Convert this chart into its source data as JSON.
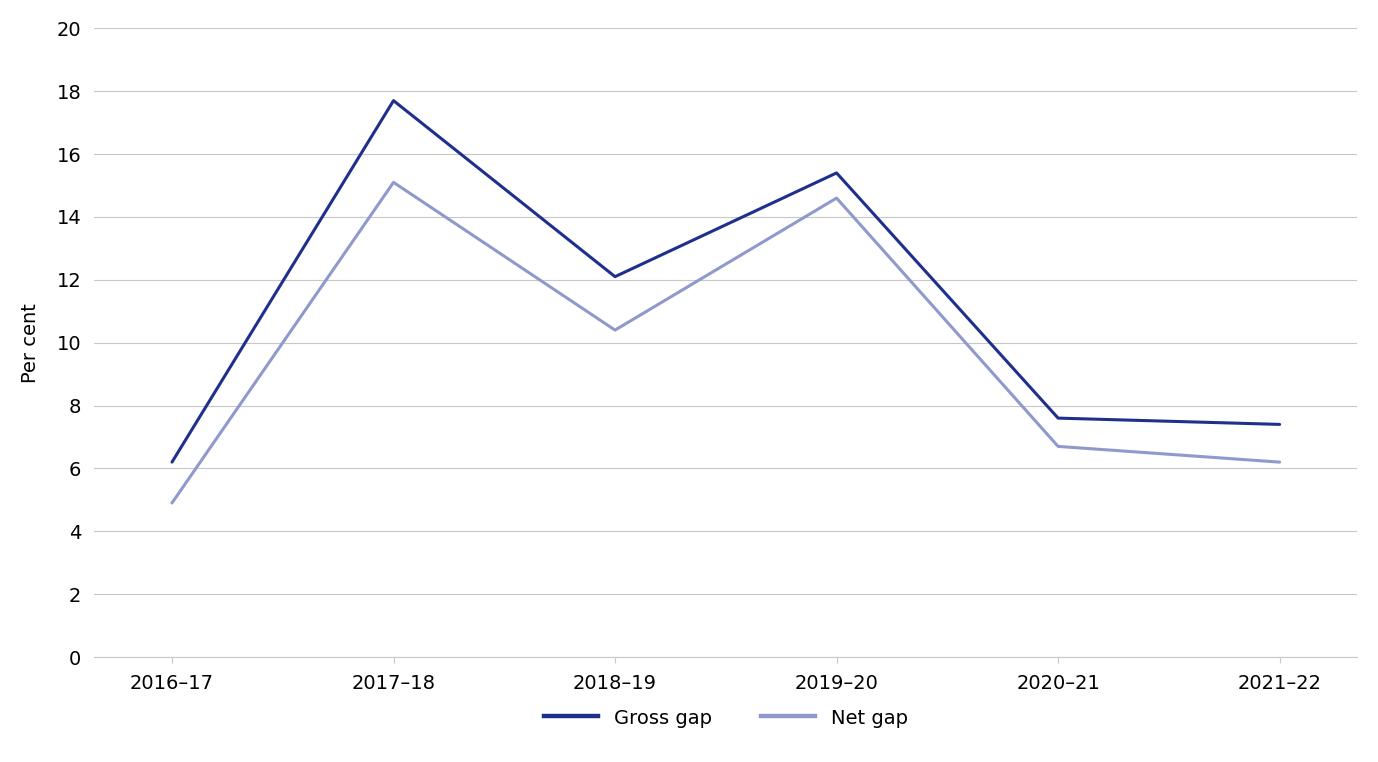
{
  "categories": [
    "2016–17",
    "2017–18",
    "2018–19",
    "2019–20",
    "2020–21",
    "2021–22"
  ],
  "gross_gap": [
    6.2,
    17.7,
    12.1,
    15.4,
    7.6,
    7.4
  ],
  "net_gap": [
    4.9,
    15.1,
    10.4,
    14.6,
    6.7,
    6.2
  ],
  "gross_color": "#1f2f8c",
  "net_color": "#9099cc",
  "gross_label": "Gross gap",
  "net_label": "Net gap",
  "ylabel": "Per cent",
  "ylim": [
    0,
    20
  ],
  "yticks": [
    0,
    2,
    4,
    6,
    8,
    10,
    12,
    14,
    16,
    18,
    20
  ],
  "background_color": "#ffffff",
  "grid_color": "#c8c8c8",
  "line_width": 2.2,
  "legend_fontsize": 14,
  "ylabel_fontsize": 14,
  "tick_fontsize": 14
}
